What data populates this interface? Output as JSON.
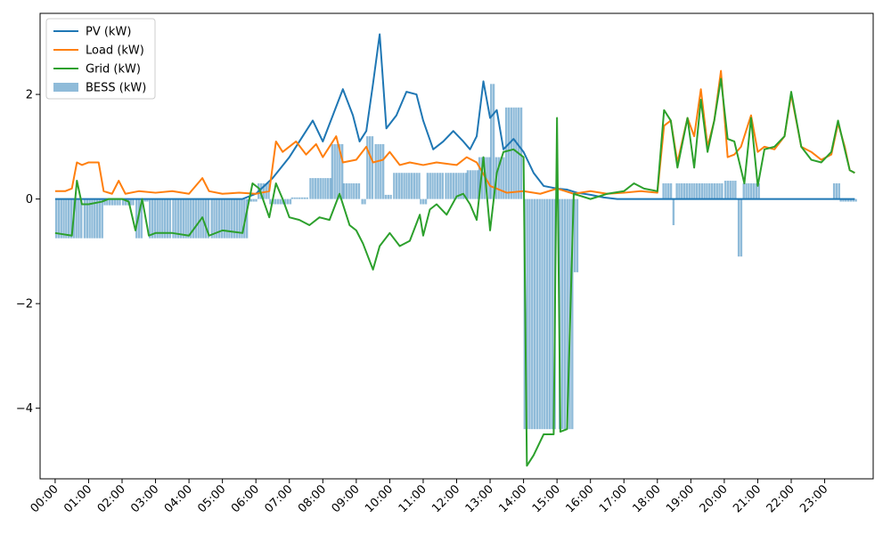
{
  "chart_data": {
    "type": "line",
    "title": "",
    "xlabel": "",
    "ylabel": "",
    "grid": false,
    "legend_position": "top-left",
    "x_unit": "hours",
    "xlim": [
      -0.45,
      24.45
    ],
    "ylim": [
      -5.35,
      3.55
    ],
    "x_ticks": [
      0,
      1,
      2,
      3,
      4,
      5,
      6,
      7,
      8,
      9,
      10,
      11,
      12,
      13,
      14,
      15,
      16,
      17,
      18,
      19,
      20,
      21,
      22,
      23
    ],
    "x_tick_labels": [
      "00:00",
      "01:00",
      "02:00",
      "03:00",
      "04:00",
      "05:00",
      "06:00",
      "07:00",
      "08:00",
      "09:00",
      "10:00",
      "11:00",
      "12:00",
      "13:00",
      "14:00",
      "15:00",
      "16:00",
      "17:00",
      "18:00",
      "19:00",
      "20:00",
      "21:00",
      "22:00",
      "23:00"
    ],
    "y_ticks": [
      2,
      0,
      -2,
      -4
    ],
    "y_tick_labels": [
      "2",
      "0",
      "−2",
      "−4"
    ],
    "series": [
      {
        "name": "PV (kW)",
        "color": "#1f77b4",
        "points": [
          [
            0,
            0
          ],
          [
            5.6,
            0
          ],
          [
            6.0,
            0.1
          ],
          [
            6.5,
            0.4
          ],
          [
            7.0,
            0.8
          ],
          [
            7.5,
            1.3
          ],
          [
            7.7,
            1.5
          ],
          [
            8.0,
            1.1
          ],
          [
            8.3,
            1.6
          ],
          [
            8.6,
            2.1
          ],
          [
            8.9,
            1.6
          ],
          [
            9.1,
            1.1
          ],
          [
            9.3,
            1.3
          ],
          [
            9.5,
            2.2
          ],
          [
            9.7,
            3.15
          ],
          [
            9.9,
            1.35
          ],
          [
            10.2,
            1.6
          ],
          [
            10.5,
            2.05
          ],
          [
            10.8,
            2.0
          ],
          [
            11.0,
            1.5
          ],
          [
            11.3,
            0.95
          ],
          [
            11.6,
            1.1
          ],
          [
            11.9,
            1.3
          ],
          [
            12.2,
            1.1
          ],
          [
            12.4,
            0.95
          ],
          [
            12.6,
            1.2
          ],
          [
            12.8,
            2.25
          ],
          [
            13.0,
            1.55
          ],
          [
            13.2,
            1.7
          ],
          [
            13.4,
            0.95
          ],
          [
            13.7,
            1.15
          ],
          [
            14.0,
            0.9
          ],
          [
            14.3,
            0.5
          ],
          [
            14.6,
            0.25
          ],
          [
            15.0,
            0.2
          ],
          [
            15.3,
            0.18
          ],
          [
            15.6,
            0.12
          ],
          [
            16.0,
            0.08
          ],
          [
            16.4,
            0.03
          ],
          [
            16.8,
            0
          ],
          [
            23.9,
            0
          ]
        ]
      },
      {
        "name": "Load (kW)",
        "color": "#ff7f0e",
        "points": [
          [
            0,
            0.15
          ],
          [
            0.3,
            0.15
          ],
          [
            0.5,
            0.2
          ],
          [
            0.65,
            0.7
          ],
          [
            0.8,
            0.65
          ],
          [
            1.0,
            0.7
          ],
          [
            1.3,
            0.7
          ],
          [
            1.45,
            0.15
          ],
          [
            1.7,
            0.1
          ],
          [
            1.9,
            0.35
          ],
          [
            2.1,
            0.1
          ],
          [
            2.5,
            0.15
          ],
          [
            3.0,
            0.12
          ],
          [
            3.5,
            0.15
          ],
          [
            4.0,
            0.1
          ],
          [
            4.4,
            0.4
          ],
          [
            4.6,
            0.15
          ],
          [
            5.0,
            0.1
          ],
          [
            5.5,
            0.12
          ],
          [
            6.0,
            0.1
          ],
          [
            6.4,
            0.15
          ],
          [
            6.6,
            1.1
          ],
          [
            6.8,
            0.9
          ],
          [
            7.0,
            1.0
          ],
          [
            7.2,
            1.1
          ],
          [
            7.5,
            0.85
          ],
          [
            7.8,
            1.05
          ],
          [
            8.0,
            0.8
          ],
          [
            8.4,
            1.2
          ],
          [
            8.6,
            0.7
          ],
          [
            9.0,
            0.75
          ],
          [
            9.3,
            1.0
          ],
          [
            9.5,
            0.7
          ],
          [
            9.8,
            0.75
          ],
          [
            10.0,
            0.9
          ],
          [
            10.3,
            0.65
          ],
          [
            10.6,
            0.7
          ],
          [
            11.0,
            0.65
          ],
          [
            11.4,
            0.7
          ],
          [
            12.0,
            0.65
          ],
          [
            12.3,
            0.8
          ],
          [
            12.6,
            0.7
          ],
          [
            13.0,
            0.25
          ],
          [
            13.5,
            0.12
          ],
          [
            14.0,
            0.15
          ],
          [
            14.5,
            0.1
          ],
          [
            15.0,
            0.2
          ],
          [
            15.5,
            0.1
          ],
          [
            16.0,
            0.15
          ],
          [
            16.5,
            0.1
          ],
          [
            17.0,
            0.12
          ],
          [
            17.5,
            0.15
          ],
          [
            18.0,
            0.12
          ],
          [
            18.2,
            1.4
          ],
          [
            18.4,
            1.5
          ],
          [
            18.6,
            0.7
          ],
          [
            18.9,
            1.55
          ],
          [
            19.1,
            1.2
          ],
          [
            19.3,
            2.1
          ],
          [
            19.5,
            1.0
          ],
          [
            19.7,
            1.5
          ],
          [
            19.9,
            2.45
          ],
          [
            20.1,
            0.8
          ],
          [
            20.3,
            0.85
          ],
          [
            20.5,
            1.0
          ],
          [
            20.8,
            1.6
          ],
          [
            21.0,
            0.9
          ],
          [
            21.2,
            1.0
          ],
          [
            21.5,
            0.95
          ],
          [
            21.8,
            1.2
          ],
          [
            22.0,
            2.0
          ],
          [
            22.3,
            1.0
          ],
          [
            22.6,
            0.9
          ],
          [
            22.9,
            0.75
          ],
          [
            23.2,
            0.85
          ],
          [
            23.4,
            1.45
          ],
          [
            23.6,
            1.0
          ],
          [
            23.75,
            0.55
          ],
          [
            23.9,
            0.5
          ]
        ]
      },
      {
        "name": "Grid (kW)",
        "color": "#2ca02c",
        "points": [
          [
            0,
            -0.65
          ],
          [
            0.5,
            -0.7
          ],
          [
            0.65,
            0.35
          ],
          [
            0.8,
            -0.1
          ],
          [
            1.0,
            -0.1
          ],
          [
            1.4,
            -0.05
          ],
          [
            1.6,
            0
          ],
          [
            2.0,
            0
          ],
          [
            2.2,
            -0.05
          ],
          [
            2.4,
            -0.6
          ],
          [
            2.6,
            0
          ],
          [
            2.8,
            -0.7
          ],
          [
            3.0,
            -0.65
          ],
          [
            3.5,
            -0.65
          ],
          [
            4.0,
            -0.7
          ],
          [
            4.4,
            -0.35
          ],
          [
            4.6,
            -0.7
          ],
          [
            5.0,
            -0.6
          ],
          [
            5.6,
            -0.65
          ],
          [
            5.9,
            0.3
          ],
          [
            6.1,
            0.2
          ],
          [
            6.4,
            -0.35
          ],
          [
            6.6,
            0.3
          ],
          [
            6.8,
            0
          ],
          [
            7.0,
            -0.35
          ],
          [
            7.3,
            -0.4
          ],
          [
            7.6,
            -0.5
          ],
          [
            7.9,
            -0.35
          ],
          [
            8.2,
            -0.4
          ],
          [
            8.5,
            0.1
          ],
          [
            8.8,
            -0.5
          ],
          [
            9.0,
            -0.6
          ],
          [
            9.2,
            -0.85
          ],
          [
            9.5,
            -1.35
          ],
          [
            9.7,
            -0.9
          ],
          [
            10.0,
            -0.65
          ],
          [
            10.3,
            -0.9
          ],
          [
            10.6,
            -0.8
          ],
          [
            10.9,
            -0.3
          ],
          [
            11.0,
            -0.7
          ],
          [
            11.2,
            -0.2
          ],
          [
            11.4,
            -0.1
          ],
          [
            11.7,
            -0.3
          ],
          [
            12.0,
            0.05
          ],
          [
            12.2,
            0.1
          ],
          [
            12.4,
            -0.1
          ],
          [
            12.6,
            -0.4
          ],
          [
            12.8,
            0.8
          ],
          [
            13.0,
            -0.6
          ],
          [
            13.2,
            0.5
          ],
          [
            13.4,
            0.9
          ],
          [
            13.7,
            0.95
          ],
          [
            14.0,
            0.8
          ],
          [
            14.1,
            -5.1
          ],
          [
            14.3,
            -4.9
          ],
          [
            14.6,
            -4.5
          ],
          [
            14.9,
            -4.5
          ],
          [
            15.0,
            1.55
          ],
          [
            15.1,
            -4.45
          ],
          [
            15.3,
            -4.4
          ],
          [
            15.5,
            0.1
          ],
          [
            16.0,
            0
          ],
          [
            16.5,
            0.1
          ],
          [
            17.0,
            0.15
          ],
          [
            17.3,
            0.3
          ],
          [
            17.6,
            0.2
          ],
          [
            18.0,
            0.15
          ],
          [
            18.2,
            1.7
          ],
          [
            18.4,
            1.5
          ],
          [
            18.6,
            0.6
          ],
          [
            18.9,
            1.55
          ],
          [
            19.1,
            0.6
          ],
          [
            19.3,
            1.9
          ],
          [
            19.5,
            0.9
          ],
          [
            19.7,
            1.5
          ],
          [
            19.9,
            2.3
          ],
          [
            20.1,
            1.15
          ],
          [
            20.3,
            1.1
          ],
          [
            20.6,
            0.3
          ],
          [
            20.8,
            1.55
          ],
          [
            21.0,
            0.25
          ],
          [
            21.2,
            0.95
          ],
          [
            21.5,
            1.0
          ],
          [
            21.8,
            1.2
          ],
          [
            22.0,
            2.05
          ],
          [
            22.3,
            1.0
          ],
          [
            22.6,
            0.75
          ],
          [
            22.9,
            0.7
          ],
          [
            23.2,
            0.9
          ],
          [
            23.4,
            1.5
          ],
          [
            23.6,
            0.95
          ],
          [
            23.75,
            0.55
          ],
          [
            23.9,
            0.5
          ]
        ]
      }
    ],
    "bars": {
      "name": "BESS (kW)",
      "color": "#1f77b4",
      "opacity": 0.5,
      "bar_width": 0.075,
      "segments": [
        {
          "start": 0.0,
          "end": 0.8,
          "value": -0.75
        },
        {
          "start": 0.85,
          "end": 1.4,
          "value": -0.75
        },
        {
          "start": 1.45,
          "end": 1.95,
          "value": -0.12
        },
        {
          "start": 2.0,
          "end": 2.35,
          "value": -0.12
        },
        {
          "start": 2.4,
          "end": 2.6,
          "value": -0.75
        },
        {
          "start": 2.65,
          "end": 2.75,
          "value": -0.05
        },
        {
          "start": 2.8,
          "end": 3.45,
          "value": -0.75
        },
        {
          "start": 3.5,
          "end": 4.6,
          "value": -0.75
        },
        {
          "start": 4.65,
          "end": 5.7,
          "value": -0.75
        },
        {
          "start": 5.75,
          "end": 6.0,
          "value": -0.05
        },
        {
          "start": 6.05,
          "end": 6.35,
          "value": 0.3
        },
        {
          "start": 6.4,
          "end": 7.0,
          "value": -0.1
        },
        {
          "start": 7.05,
          "end": 7.55,
          "value": 0.03
        },
        {
          "start": 7.6,
          "end": 8.2,
          "value": 0.4
        },
        {
          "start": 8.25,
          "end": 8.55,
          "value": 1.05
        },
        {
          "start": 8.6,
          "end": 9.1,
          "value": 0.3
        },
        {
          "start": 9.15,
          "end": 9.25,
          "value": -0.1
        },
        {
          "start": 9.3,
          "end": 9.5,
          "value": 1.2
        },
        {
          "start": 9.55,
          "end": 9.8,
          "value": 1.05
        },
        {
          "start": 9.85,
          "end": 10.05,
          "value": 0.08
        },
        {
          "start": 10.1,
          "end": 10.85,
          "value": 0.5
        },
        {
          "start": 10.9,
          "end": 11.05,
          "value": -0.1
        },
        {
          "start": 11.1,
          "end": 11.6,
          "value": 0.5
        },
        {
          "start": 11.65,
          "end": 12.25,
          "value": 0.5
        },
        {
          "start": 12.3,
          "end": 12.6,
          "value": 0.55
        },
        {
          "start": 12.65,
          "end": 12.95,
          "value": 0.8
        },
        {
          "start": 13.0,
          "end": 13.1,
          "value": 2.2
        },
        {
          "start": 13.15,
          "end": 13.4,
          "value": 0.8
        },
        {
          "start": 13.45,
          "end": 13.95,
          "value": 1.75
        },
        {
          "start": 14.0,
          "end": 14.55,
          "value": -4.4
        },
        {
          "start": 14.6,
          "end": 14.95,
          "value": -4.4
        },
        {
          "start": 15.05,
          "end": 15.45,
          "value": -4.4
        },
        {
          "start": 15.5,
          "end": 15.6,
          "value": -1.4
        },
        {
          "start": 18.15,
          "end": 18.4,
          "value": 0.3
        },
        {
          "start": 18.45,
          "end": 18.5,
          "value": -0.5
        },
        {
          "start": 18.55,
          "end": 19.95,
          "value": 0.3
        },
        {
          "start": 20.0,
          "end": 20.35,
          "value": 0.35
        },
        {
          "start": 20.4,
          "end": 20.5,
          "value": -1.1
        },
        {
          "start": 20.55,
          "end": 21.0,
          "value": 0.3
        },
        {
          "start": 23.25,
          "end": 23.4,
          "value": 0.3
        },
        {
          "start": 23.45,
          "end": 23.9,
          "value": -0.05
        }
      ]
    }
  }
}
